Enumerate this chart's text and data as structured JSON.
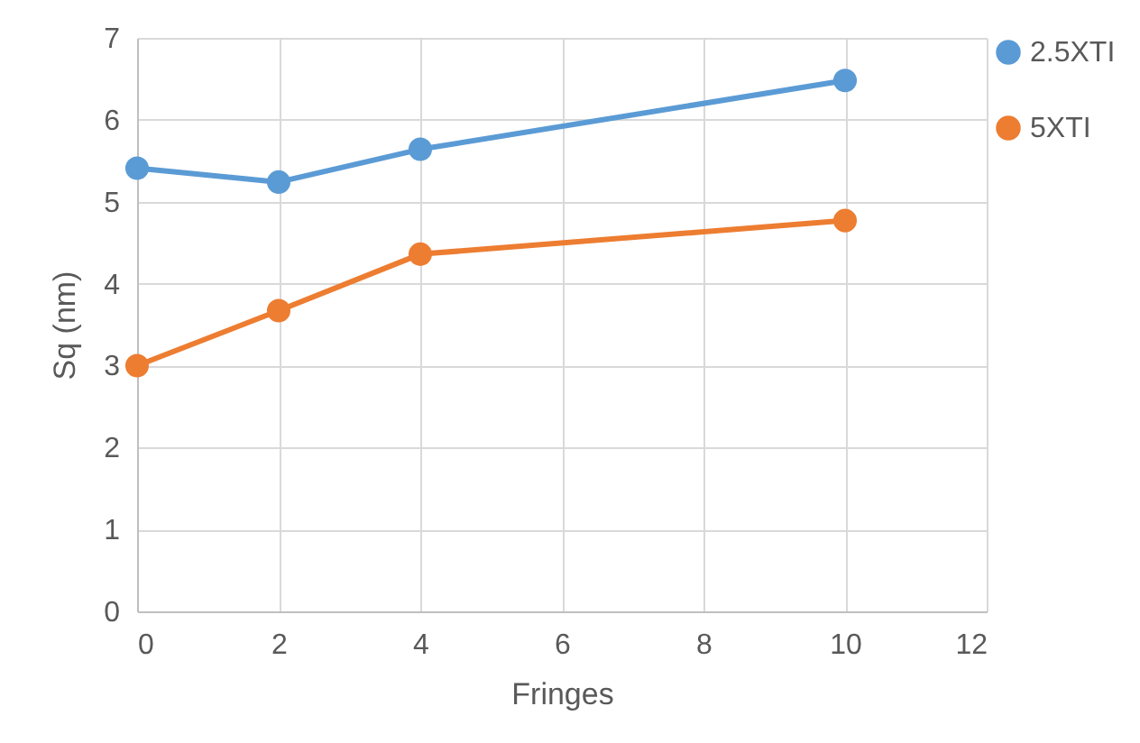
{
  "chart_data": {
    "type": "line",
    "xlabel": "Fringes",
    "ylabel": "Sq (nm)",
    "x": [
      0,
      2,
      4,
      10
    ],
    "series": [
      {
        "name": "2.5XTI",
        "color": "#5b9bd5",
        "values": [
          5.41,
          5.24,
          5.64,
          6.48
        ]
      },
      {
        "name": "5XTI",
        "color": "#ed7d31",
        "values": [
          3.0,
          3.67,
          4.36,
          4.77
        ]
      }
    ],
    "xlim": [
      0,
      12
    ],
    "xticks": [
      0,
      2,
      4,
      6,
      8,
      10,
      12
    ],
    "ylim": [
      0,
      7
    ],
    "yticks": [
      0,
      1,
      2,
      3,
      4,
      5,
      6,
      7
    ],
    "grid": true,
    "legend": "top right",
    "marker": "circle",
    "line_style": "solid"
  }
}
